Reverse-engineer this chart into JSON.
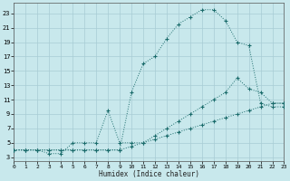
{
  "xlabel": "Humidex (Indice chaleur)",
  "background_color": "#c8e8ec",
  "grid_color": "#a8ccd4",
  "line_color": "#1a6b6b",
  "xlim": [
    0,
    23
  ],
  "ylim": [
    2.5,
    24.5
  ],
  "xticks": [
    0,
    1,
    2,
    3,
    4,
    5,
    6,
    7,
    8,
    9,
    10,
    11,
    12,
    13,
    14,
    15,
    16,
    17,
    18,
    19,
    20,
    21,
    22,
    23
  ],
  "yticks": [
    3,
    5,
    7,
    9,
    11,
    13,
    15,
    17,
    19,
    21,
    23
  ],
  "curve1_x": [
    0,
    1,
    2,
    3,
    4,
    5,
    6,
    7,
    8,
    9,
    10,
    11,
    12,
    13,
    14,
    15,
    16,
    17,
    18,
    19,
    20,
    21,
    22,
    23
  ],
  "curve1_y": [
    4,
    4,
    4,
    4,
    4,
    4,
    4,
    4,
    4,
    4,
    12,
    16,
    17,
    19.5,
    21.5,
    22.5,
    23.5,
    23.5,
    22,
    19,
    18.5,
    10.5,
    10,
    10
  ],
  "curve2_x": [
    0,
    1,
    2,
    3,
    4,
    5,
    6,
    7,
    8,
    9,
    10,
    11,
    12,
    13,
    14,
    15,
    16,
    17,
    18,
    19,
    20,
    21,
    22,
    23
  ],
  "curve2_y": [
    4,
    4,
    4,
    3.5,
    3.5,
    5,
    5,
    5,
    9.5,
    5,
    5,
    5,
    6,
    7,
    8,
    9,
    10,
    11,
    12,
    14,
    12.5,
    12,
    10.5,
    10.5
  ],
  "curve3_x": [
    0,
    1,
    2,
    3,
    4,
    5,
    6,
    7,
    8,
    9,
    10,
    11,
    12,
    13,
    14,
    15,
    16,
    17,
    18,
    19,
    20,
    21,
    22,
    23
  ],
  "curve3_y": [
    4,
    4,
    4,
    4,
    4,
    4,
    4,
    4,
    4,
    4,
    4.5,
    5,
    5.5,
    6,
    6.5,
    7,
    7.5,
    8,
    8.5,
    9,
    9.5,
    10,
    10.5,
    10.5
  ]
}
